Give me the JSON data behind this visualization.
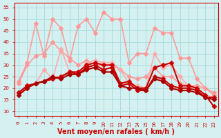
{
  "x": [
    0,
    1,
    2,
    3,
    4,
    5,
    6,
    7,
    8,
    9,
    10,
    11,
    12,
    13,
    14,
    15,
    16,
    17,
    18,
    19,
    20,
    21,
    22,
    23
  ],
  "series": [
    {
      "name": "rafales_light1",
      "color": "#ff9999",
      "lw": 1.2,
      "marker": "D",
      "markersize": 3,
      "values": [
        23,
        31,
        48,
        34,
        50,
        46,
        32,
        47,
        50,
        44,
        53,
        50,
        50,
        31,
        35,
        35,
        46,
        44,
        44,
        33,
        33,
        24,
        20,
        17
      ]
    },
    {
      "name": "rafales_light2",
      "color": "#ff9999",
      "lw": 1.2,
      "marker": "D",
      "markersize": 3,
      "values": [
        22,
        30,
        34,
        35,
        40,
        36,
        33,
        30,
        32,
        30,
        30,
        30,
        28,
        25,
        24,
        25,
        29,
        25,
        25,
        22,
        21,
        21,
        20,
        18
      ]
    },
    {
      "name": "moyen_light",
      "color": "#ffaaaa",
      "lw": 1.2,
      "marker": "D",
      "markersize": 3,
      "values": [
        18,
        21,
        22,
        28,
        24,
        37,
        27,
        26,
        31,
        32,
        31,
        31,
        28,
        22,
        21,
        20,
        35,
        29,
        30,
        25,
        21,
        20,
        17,
        16
      ]
    },
    {
      "name": "series_dark1",
      "color": "#cc0000",
      "lw": 1.5,
      "marker": "D",
      "markersize": 3,
      "values": [
        18,
        21,
        22,
        23,
        24,
        25,
        27,
        27,
        30,
        31,
        30,
        30,
        22,
        23,
        20,
        20,
        29,
        30,
        31,
        21,
        21,
        20,
        17,
        12
      ]
    },
    {
      "name": "series_dark2",
      "color": "#cc0000",
      "lw": 1.5,
      "marker": "D",
      "markersize": 3,
      "values": [
        18,
        21,
        22,
        23,
        24,
        25,
        27,
        26,
        29,
        30,
        28,
        29,
        21,
        22,
        19,
        19,
        25,
        24,
        21,
        20,
        20,
        19,
        16,
        16
      ]
    },
    {
      "name": "series_dark3",
      "color": "#aa0000",
      "lw": 1.5,
      "marker": "D",
      "markersize": 3,
      "values": [
        17,
        20,
        22,
        23,
        25,
        24,
        26,
        26,
        28,
        29,
        27,
        27,
        21,
        20,
        20,
        19,
        24,
        23,
        20,
        19,
        19,
        18,
        16,
        15
      ]
    }
  ],
  "xlim": [
    -0.5,
    23.5
  ],
  "ylim": [
    8,
    57
  ],
  "yticks": [
    10,
    15,
    20,
    25,
    30,
    35,
    40,
    45,
    50,
    55
  ],
  "xticks": [
    0,
    1,
    2,
    3,
    4,
    5,
    6,
    7,
    8,
    9,
    10,
    11,
    12,
    13,
    14,
    15,
    16,
    17,
    18,
    19,
    20,
    21,
    22,
    23
  ],
  "xlabel": "Vent moyen/en rafales ( km/h )",
  "xlabel_color": "#cc0000",
  "bg_color": "#d4f0f0",
  "grid_color": "#aadddd",
  "tick_fontsize": 5,
  "xlabel_fontsize": 7
}
